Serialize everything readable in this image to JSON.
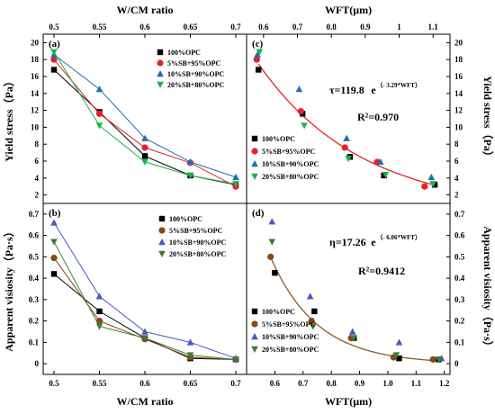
{
  "chart_data": [
    {
      "panel": "(a)",
      "type": "line",
      "xlabel": "W/CM ratio",
      "ylabel": "Yield stress（Pa）",
      "xlim": [
        0.5,
        0.7
      ],
      "ylim": [
        1,
        21
      ],
      "xticks": [
        "0.5",
        "0.55",
        "0.6",
        "0.65",
        "0.7"
      ],
      "yticks": [
        "2",
        "4",
        "6",
        "8",
        "10",
        "12",
        "14",
        "16",
        "18",
        "20"
      ],
      "x": [
        0.5,
        0.55,
        0.6,
        0.65,
        0.7
      ],
      "series": [
        {
          "name": "100%OPC",
          "values": [
            16.8,
            11.8,
            6.6,
            4.3,
            3.2
          ],
          "color": "#000000",
          "marker": "square"
        },
        {
          "name": "5%SB+95%OPC",
          "values": [
            18.0,
            11.6,
            7.6,
            5.8,
            3.0
          ],
          "color": "#e8202a",
          "marker": "circle"
        },
        {
          "name": "10%SB+90%OPC",
          "values": [
            18.6,
            14.5,
            8.7,
            5.9,
            4.1
          ],
          "color": "#1f6fb4",
          "marker": "triangle-up"
        },
        {
          "name": "20%SB+80%OPC",
          "values": [
            18.9,
            10.2,
            5.9,
            4.3,
            3.3
          ],
          "color": "#1db34d",
          "marker": "triangle-down"
        }
      ],
      "legend": "top-right"
    },
    {
      "panel": "(b)",
      "type": "line",
      "xlabel": "W/CM ratio",
      "ylabel": "Apparent visiosity（Pa·s）",
      "xlim": [
        0.5,
        0.7
      ],
      "ylim": [
        -0.05,
        0.75
      ],
      "xticks": [
        "0.5",
        "0.55",
        "0.6",
        "0.65",
        "0.7"
      ],
      "yticks": [
        "0",
        "0.1",
        "0.2",
        "0.3",
        "0.4",
        "0.5",
        "0.6",
        "0.7"
      ],
      "x": [
        0.5,
        0.55,
        0.6,
        0.65,
        0.7
      ],
      "series": [
        {
          "name": "100%OPC",
          "values": [
            0.42,
            0.245,
            0.12,
            0.025,
            0.02
          ],
          "color": "#000000",
          "marker": "square"
        },
        {
          "name": "5%SB+95%OPC",
          "values": [
            0.495,
            0.2,
            0.115,
            0.03,
            0.02
          ],
          "color": "#8b4513",
          "marker": "circle"
        },
        {
          "name": "10%SB+90%OPC",
          "values": [
            0.66,
            0.315,
            0.15,
            0.1,
            0.025
          ],
          "color": "#4b55c8",
          "marker": "triangle-up"
        },
        {
          "name": "20%SB+80%OPC",
          "values": [
            0.57,
            0.175,
            0.12,
            0.04,
            0.02
          ],
          "color": "#3a7d3a",
          "marker": "triangle-down"
        }
      ],
      "legend": "top-right"
    },
    {
      "panel": "(c)",
      "type": "scatter",
      "xlabel": "WFT(μm)",
      "ylabel": "Yield stress（Pa）",
      "xlim": [
        0.55,
        1.15
      ],
      "ylim": [
        1,
        21
      ],
      "xticks": [
        "0.6",
        "0.7",
        "0.8",
        "0.9",
        "1",
        "1.1"
      ],
      "yticks": [
        "2",
        "4",
        "6",
        "8",
        "10",
        "12",
        "14",
        "16",
        "18",
        "20"
      ],
      "series": [
        {
          "name": "100%OPC",
          "color": "#000000",
          "marker": "square",
          "points": [
            [
              0.585,
              16.8
            ],
            [
              0.715,
              11.6
            ],
            [
              0.855,
              6.5
            ],
            [
              0.955,
              4.3
            ],
            [
              1.105,
              3.2
            ]
          ]
        },
        {
          "name": "5%SB+95%OPC",
          "color": "#e8202a",
          "marker": "circle",
          "points": [
            [
              0.58,
              18.0
            ],
            [
              0.71,
              11.9
            ],
            [
              0.84,
              7.6
            ],
            [
              0.935,
              5.9
            ],
            [
              1.075,
              3.0
            ]
          ]
        },
        {
          "name": "10%SB+90%OPC",
          "color": "#1f6fb4",
          "marker": "triangle-up",
          "points": [
            [
              0.582,
              18.6
            ],
            [
              0.705,
              14.5
            ],
            [
              0.845,
              8.7
            ],
            [
              0.945,
              5.9
            ],
            [
              1.095,
              4.1
            ]
          ]
        },
        {
          "name": "20%SB+80%OPC",
          "color": "#1db34d",
          "marker": "triangle-down",
          "points": [
            [
              0.588,
              18.9
            ],
            [
              0.72,
              10.2
            ],
            [
              0.85,
              6.3
            ],
            [
              0.96,
              4.4
            ],
            [
              1.1,
              3.3
            ]
          ]
        }
      ],
      "fit": {
        "a": 119.8,
        "b": -3.29,
        "color": "#e8202a",
        "xrange": [
          0.585,
          1.11
        ]
      },
      "equation": {
        "lead": "τ=119.8",
        "e": "e",
        "exp": "（- 3.29*WFT）",
        "r2": "R²=0.970"
      },
      "legend": "bottom-left"
    },
    {
      "panel": "(d)",
      "type": "scatter",
      "xlabel": "WFT(μm)",
      "ylabel": "Apparent visiosity（Pa·s）",
      "xlim": [
        0.5,
        1.22
      ],
      "ylim": [
        -0.05,
        0.75
      ],
      "xticks": [
        "0.6",
        "0.7",
        "0.8",
        "0.9",
        "1.0",
        "1.1",
        "1.2"
      ],
      "yticks": [
        "0",
        "0.1",
        "0.2",
        "0.3",
        "0.4",
        "0.5",
        "0.6",
        "0.7"
      ],
      "series": [
        {
          "name": "100%OPC",
          "color": "#000000",
          "marker": "square",
          "points": [
            [
              0.6,
              0.425
            ],
            [
              0.74,
              0.245
            ],
            [
              0.88,
              0.12
            ],
            [
              1.04,
              0.025
            ],
            [
              1.18,
              0.02
            ]
          ]
        },
        {
          "name": "5%SB+95%OPC",
          "color": "#8b4513",
          "marker": "circle",
          "points": [
            [
              0.585,
              0.5
            ],
            [
              0.73,
              0.2
            ],
            [
              0.87,
              0.12
            ],
            [
              1.02,
              0.03
            ],
            [
              1.16,
              0.02
            ]
          ]
        },
        {
          "name": "10%SB+90%OPC",
          "color": "#4b55c8",
          "marker": "triangle-up",
          "points": [
            [
              0.59,
              0.665
            ],
            [
              0.725,
              0.315
            ],
            [
              0.875,
              0.15
            ],
            [
              1.04,
              0.1
            ],
            [
              1.19,
              0.025
            ]
          ]
        },
        {
          "name": "20%SB+80%OPC",
          "color": "#3a7d3a",
          "marker": "triangle-down",
          "points": [
            [
              0.59,
              0.57
            ],
            [
              0.735,
              0.175
            ],
            [
              0.88,
              0.12
            ],
            [
              1.03,
              0.04
            ],
            [
              1.18,
              0.02
            ]
          ]
        }
      ],
      "fit": {
        "a": 17.26,
        "b": -6.06,
        "color": "#8b5a2b",
        "xrange": [
          0.585,
          1.19
        ]
      },
      "equation": {
        "lead": "η=17.26",
        "e": "e",
        "exp": "（- 6.06*WFT）",
        "r2": "R²=0.9412"
      },
      "legend": "bottom-left"
    }
  ]
}
